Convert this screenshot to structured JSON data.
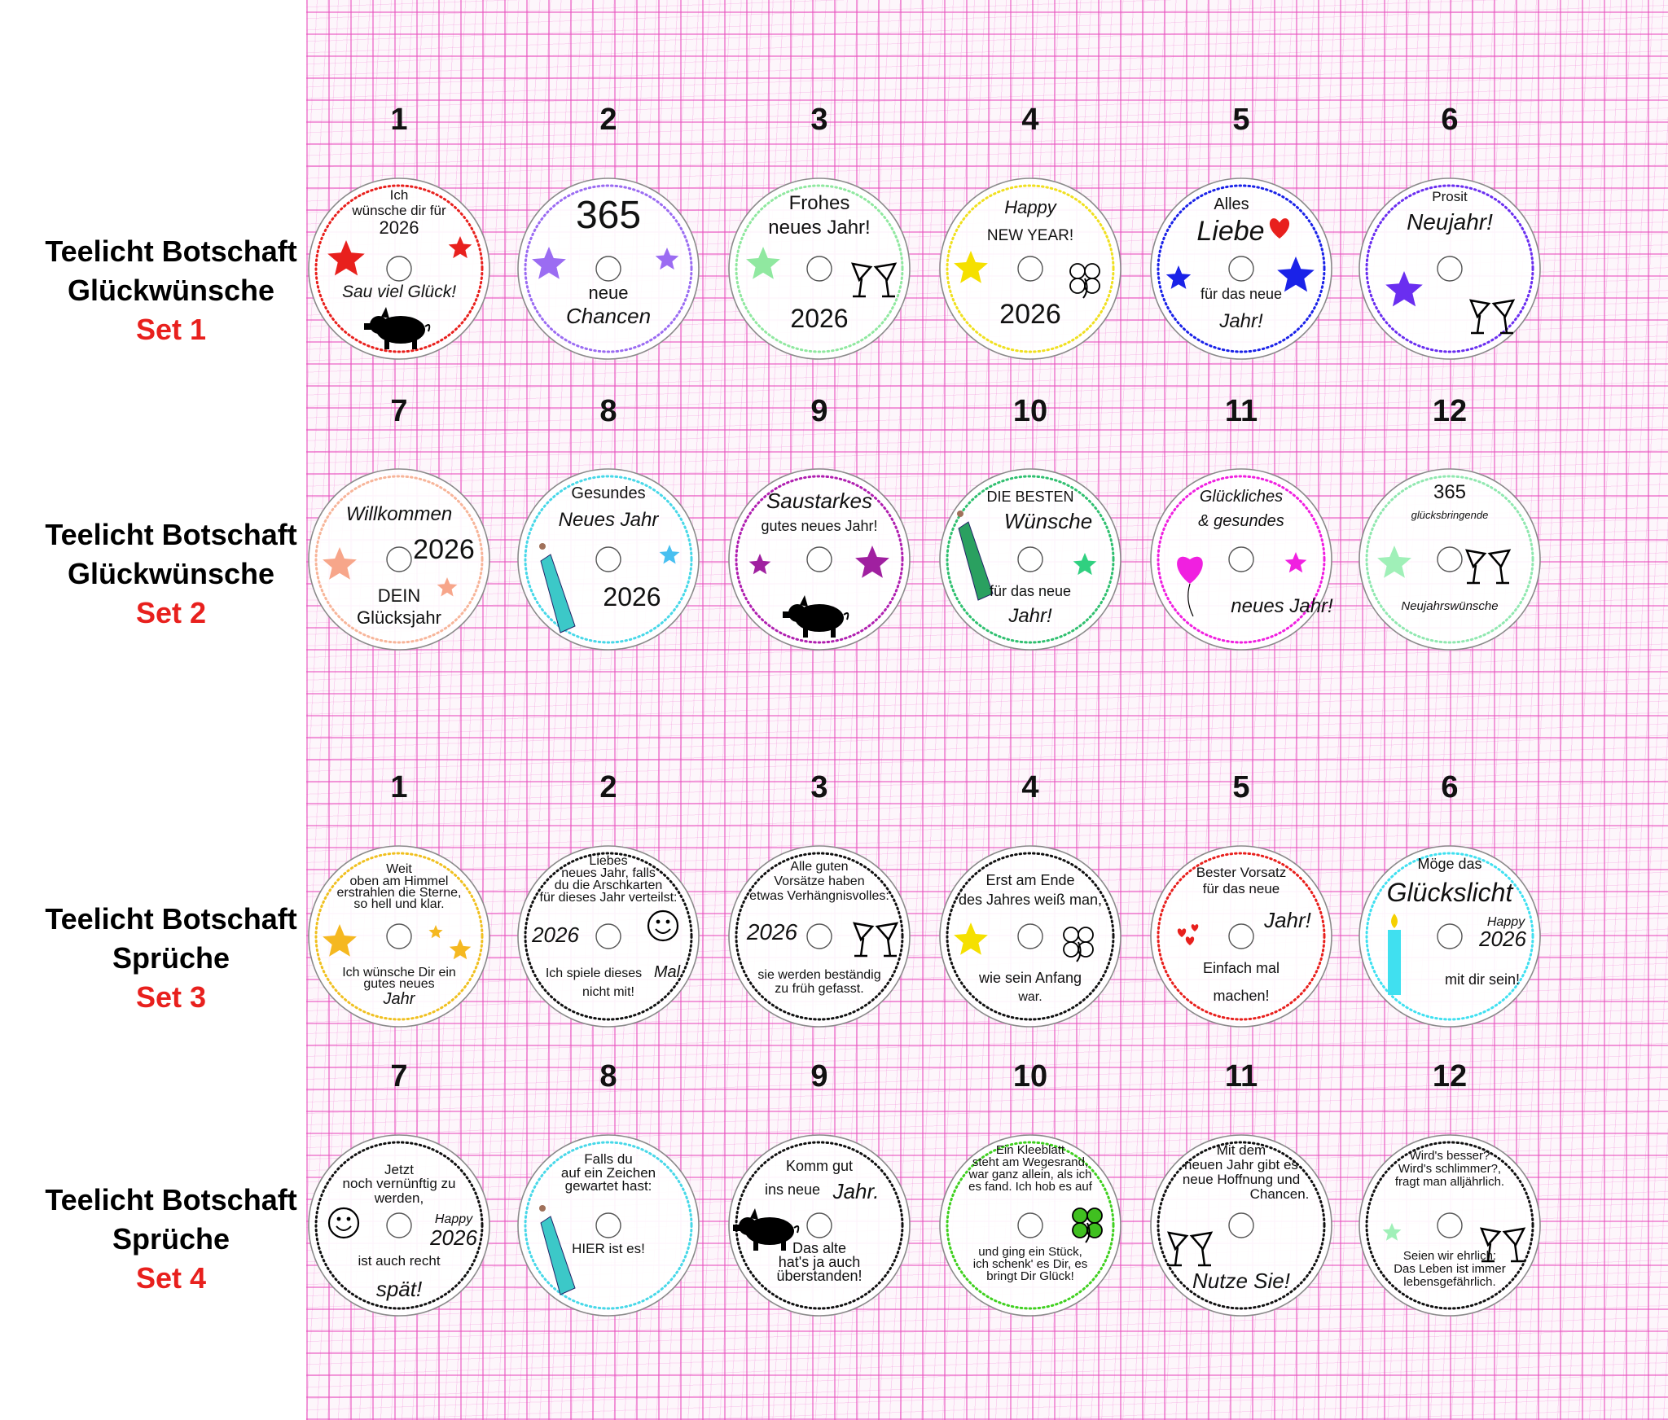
{
  "sets": [
    {
      "line1": "Teelicht Botschaft",
      "line2": "Glückwünsche",
      "line3": "Set 1"
    },
    {
      "line1": "Teelicht Botschaft",
      "line2": "Glückwünsche",
      "line3": "Set 2"
    },
    {
      "line1": "Teelicht Botschaft",
      "line2": "Sprüche",
      "line3": "Set 3"
    },
    {
      "line1": "Teelicht Botschaft",
      "line2": "Sprüche",
      "line3": "Set 4"
    }
  ],
  "discs": [
    {
      "number": "1",
      "ring": "#e8201d",
      "lines": [
        "Ich",
        "wünsche dir für",
        "2026",
        "Sau viel Glück!"
      ],
      "stars": [
        "#e8201d",
        "#e8201d"
      ],
      "icons": [
        "pig-icon"
      ]
    },
    {
      "number": "2",
      "ring": "#9b6cf2",
      "lines": [
        "365",
        "neue",
        "Chancen"
      ],
      "stars": [
        "#9b6cf2",
        "#9b6cf2"
      ],
      "icons": []
    },
    {
      "number": "3",
      "ring": "#90e8a0",
      "lines": [
        "Frohes",
        "neues Jahr!",
        "2026"
      ],
      "stars": [
        "#90e8a0"
      ],
      "icons": [
        "cocktail-glasses-icon"
      ]
    },
    {
      "number": "4",
      "ring": "#f0e020",
      "lines": [
        "Happy",
        "NEW YEAR!",
        "2026"
      ],
      "stars": [
        "#f5e000"
      ],
      "icons": [
        "clover-icon"
      ]
    },
    {
      "number": "5",
      "ring": "#1a22e8",
      "lines": [
        "Alles",
        "Liebe",
        "für das neue",
        "Jahr!"
      ],
      "stars": [
        "#1a22e8",
        "#1a22e8"
      ],
      "icons": [
        "heart-icon"
      ]
    },
    {
      "number": "6",
      "ring": "#6a2ef0",
      "lines": [
        "Prosit",
        "Neujahr!"
      ],
      "stars": [
        "#6a2ef0"
      ],
      "icons": [
        "cocktail-glasses-icon"
      ]
    },
    {
      "number": "7",
      "ring": "#f7b59a",
      "lines": [
        "Willkommen",
        "2026",
        "DEIN",
        "Glücksjahr"
      ],
      "stars": [
        "#f7a68a",
        "#f7a68a"
      ],
      "icons": []
    },
    {
      "number": "8",
      "ring": "#48d8e8",
      "lines": [
        "Gesundes",
        "Neues Jahr",
        "2026"
      ],
      "stars": [
        "#48c0f0"
      ],
      "icons": [
        "champagne-bottle-icon"
      ]
    },
    {
      "number": "9",
      "ring": "#b020b0",
      "lines": [
        "Saustarkes",
        "gutes neues Jahr!"
      ],
      "stars": [
        "#a020a0",
        "#a020a0"
      ],
      "icons": [
        "pig-icon"
      ]
    },
    {
      "number": "10",
      "ring": "#30c070",
      "lines": [
        "DIE BESTEN",
        "Wünsche",
        "für das neue",
        "Jahr!"
      ],
      "stars": [
        "#30d080"
      ],
      "icons": [
        "champagne-bottle-icon"
      ]
    },
    {
      "number": "11",
      "ring": "#f020e0",
      "lines": [
        "Glückliches",
        "& gesundes",
        "neues Jahr!"
      ],
      "stars": [
        "#f020e0"
      ],
      "icons": [
        "balloon-heart-icon"
      ]
    },
    {
      "number": "12",
      "ring": "#90e8b0",
      "lines": [
        "365",
        "glücksbringende",
        "Neujahrswünsche"
      ],
      "stars": [
        "#a0f0b8"
      ],
      "icons": [
        "cocktail-glasses-icon"
      ]
    },
    {
      "number": "1",
      "ring": "#f0c020",
      "lines": [
        "Weit",
        "oben am Himmel",
        "erstrahlen die Sterne,",
        "so hell und klar.",
        "Ich wünsche Dir ein",
        "gutes neues",
        "Jahr"
      ],
      "stars": [
        "#f5b820",
        "#f5b820",
        "#f5b820"
      ],
      "icons": []
    },
    {
      "number": "2",
      "ring": "#111111",
      "lines": [
        "Liebes",
        "neues Jahr, falls",
        "du die Arschkarten",
        "für dieses Jahr verteilst:",
        "2026",
        "Ich spiele dieses",
        "Mal",
        "nicht mit!"
      ],
      "stars": [],
      "icons": [
        "smiley-icon"
      ]
    },
    {
      "number": "3",
      "ring": "#111111",
      "lines": [
        "Alle guten",
        "Vorsätze haben",
        "etwas Verhängnisvolles:",
        "2026",
        "sie werden beständig",
        "zu früh gefasst."
      ],
      "stars": [],
      "icons": [
        "cocktail-glasses-icon"
      ]
    },
    {
      "number": "4",
      "ring": "#111111",
      "lines": [
        "Erst am Ende",
        "des Jahres weiß man,",
        "wie sein Anfang",
        "war."
      ],
      "stars": [
        "#f5e000"
      ],
      "icons": [
        "clover-icon"
      ]
    },
    {
      "number": "5",
      "ring": "#e8201d",
      "lines": [
        "Bester Vorsatz",
        "für das neue",
        "Jahr!",
        "Einfach mal",
        "machen!"
      ],
      "stars": [],
      "icons": [
        "hearts-icon"
      ]
    },
    {
      "number": "6",
      "ring": "#40e0f0",
      "lines": [
        "Möge das",
        "Glückslicht",
        "Happy",
        "2026",
        "mit dir sein!"
      ],
      "stars": [],
      "icons": [
        "candle-icon"
      ]
    },
    {
      "number": "7",
      "ring": "#111111",
      "lines": [
        "Jetzt",
        "noch vernünftig zu",
        "werden,",
        "Happy",
        "2026",
        "ist auch recht",
        "spät!"
      ],
      "stars": [],
      "icons": [
        "smiley-icon"
      ]
    },
    {
      "number": "8",
      "ring": "#48d8e8",
      "lines": [
        "Falls du",
        "auf ein Zeichen",
        "gewartet hast:",
        "HIER ist es!"
      ],
      "stars": [],
      "icons": [
        "champagne-bottle-icon"
      ]
    },
    {
      "number": "9",
      "ring": "#111111",
      "lines": [
        "Komm gut",
        "ins neue",
        "Jahr.",
        "Das alte",
        "hat's ja auch",
        "überstanden!"
      ],
      "stars": [],
      "icons": [
        "pig-icon"
      ]
    },
    {
      "number": "10",
      "ring": "#40d020",
      "lines": [
        "Ein Kleeblatt",
        "steht am Wegesrand,",
        "war ganz allein, als ich",
        "es fand. Ich hob es auf",
        "und ging ein Stück,",
        "ich schenk' es Dir, es",
        "bringt Dir Glück!"
      ],
      "stars": [],
      "icons": [
        "clover-icon"
      ]
    },
    {
      "number": "11",
      "ring": "#111111",
      "lines": [
        "Mit dem",
        "neuen Jahr gibt es",
        "neue Hoffnung und",
        "Chancen.",
        "Nutze Sie!"
      ],
      "stars": [],
      "icons": [
        "cocktail-glasses-icon"
      ]
    },
    {
      "number": "12",
      "ring": "#111111",
      "lines": [
        "Wird's besser?",
        "Wird's schlimmer?,",
        "fragt man alljährlich.",
        "Seien wir ehrlich:",
        "Das Leben ist immer",
        "lebensgefährlich."
      ],
      "stars": [
        "#a0f0b8"
      ],
      "icons": [
        "cocktail-glasses-icon"
      ]
    }
  ]
}
